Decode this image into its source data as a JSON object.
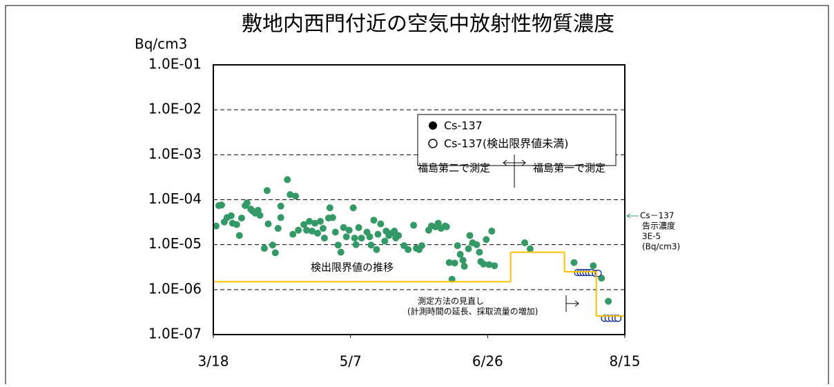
{
  "chart_data": {
    "type": "scatter",
    "title": "敷地内西門付近の空気中放射性物質濃度",
    "y_axis_label": "Bq/cm3",
    "log_y": true,
    "grid": true,
    "legend_position": "top",
    "xlim": [
      0,
      150
    ],
    "xticks": [
      {
        "value": 0,
        "label": "3/18"
      },
      {
        "value": 50,
        "label": "5/7"
      },
      {
        "value": 100,
        "label": "6/26"
      },
      {
        "value": 150,
        "label": "8/15"
      }
    ],
    "ylim": [
      1e-07,
      0.1
    ],
    "yticks": [
      {
        "value": 1e-07,
        "label": "1.0E-07"
      },
      {
        "value": 1e-06,
        "label": "1.0E-06"
      },
      {
        "value": 1e-05,
        "label": "1.0E-05"
      },
      {
        "value": 0.0001,
        "label": "1.0E-04"
      },
      {
        "value": 0.001,
        "label": "1.0E-03"
      },
      {
        "value": 0.01,
        "label": "1.0E-02"
      },
      {
        "value": 0.1,
        "label": "1.0E-01"
      }
    ],
    "series": [
      {
        "name": "Cs-137",
        "color": "#339966",
        "marker": "filled",
        "x": [
          1,
          2,
          3,
          4,
          5,
          6.5,
          7,
          8.5,
          9.5,
          10.3,
          11.6,
          12.3,
          13.6,
          14.3,
          15.3,
          16.3,
          17,
          18.6,
          19.6,
          20,
          21.6,
          22.6,
          23.6,
          24.6,
          24.6,
          27,
          28,
          29,
          30,
          31,
          33,
          34,
          35,
          36,
          37,
          38,
          39,
          40,
          40.5,
          42,
          42.5,
          43.5,
          44.5,
          45.5,
          46.5,
          47.5,
          48.5,
          49.5,
          51,
          51.5,
          52,
          53,
          54,
          56,
          57,
          57.5,
          58.5,
          59.5,
          60,
          61,
          62.5,
          63,
          64,
          65,
          66,
          66.5,
          67.5,
          69.5,
          71,
          73,
          74,
          75,
          76,
          78.5,
          79.5,
          81,
          82,
          83,
          84.5,
          85,
          86,
          87,
          88,
          89,
          90,
          91,
          91.5,
          93,
          93.5,
          94.5,
          96,
          97,
          97.5,
          98.5,
          99.5,
          100.5,
          101.5,
          102.5,
          113.5,
          115.5,
          131.5,
          138.5,
          141.5,
          144
        ],
        "values": [
          2.6e-05,
          7.4e-05,
          7.6e-05,
          3.2e-05,
          4e-05,
          4.4e-05,
          3e-05,
          2.8e-05,
          1.6e-05,
          3.9e-05,
          7.4e-05,
          8.5e-05,
          6.2e-05,
          5.6e-05,
          5e-05,
          5.8e-05,
          4.5e-05,
          8.3e-06,
          0.00016,
          2.9e-05,
          9.8e-06,
          6.6e-06,
          2.3e-05,
          7.2e-05,
          4e-05,
          0.00028,
          0.00013,
          1.7e-05,
          0.00012,
          2.1e-05,
          2.8e-05,
          2.1e-05,
          3.3e-05,
          2e-05,
          3e-05,
          1.8e-05,
          3.3e-05,
          2.3e-05,
          1.4e-05,
          3.9e-05,
          6.6e-05,
          4e-05,
          1.9e-05,
          9.8e-06,
          6.8e-06,
          2.4e-05,
          1.5e-05,
          2.1e-05,
          6.6e-05,
          1.4e-05,
          1e-05,
          2.4e-05,
          1.4e-05,
          1.9e-05,
          1.5e-05,
          9.8e-06,
          3.5e-05,
          7.8e-06,
          1.7e-05,
          2.9e-05,
          1.2e-05,
          2e-05,
          1.6e-05,
          1.8e-05,
          2e-05,
          1.4e-05,
          1.6e-05,
          9.5e-06,
          7.8e-06,
          2.7e-05,
          8.3e-06,
          7.8e-06,
          9.5e-06,
          2.1e-05,
          2.6e-05,
          2.5e-05,
          3e-05,
          2.3e-05,
          2.6e-05,
          2.5e-05,
          4e-06,
          1.7e-06,
          3.9e-06,
          9.5e-06,
          6.1e-06,
          4.5e-06,
          3.3e-06,
          8.1e-06,
          1.6e-05,
          1.1e-05,
          1e-05,
          6.8e-06,
          4.2e-06,
          3.7e-06,
          1.3e-05,
          3.6e-06,
          2e-05,
          3.4e-06,
          1.1e-05,
          8.1e-06,
          4e-06,
          3.4e-06,
          1.8e-06,
          5.5e-07
        ]
      },
      {
        "name": "Cs-137(検出限界値未満)",
        "color": "#1f3a93",
        "marker": "open",
        "x": [
          132.8,
          133.8,
          134.8,
          135.8,
          136.8,
          137.8,
          139.3,
          140.3,
          142.6,
          143.9,
          145.2,
          146.5,
          147.5
        ],
        "values": [
          2.4e-06,
          2.4e-06,
          2.4e-06,
          2.4e-06,
          2.4e-06,
          2.4e-06,
          2.3e-06,
          2.3e-06,
          2.3e-07,
          2.3e-07,
          2.3e-07,
          2.3e-07,
          2.3e-07
        ]
      },
      {
        "name": "検出限界値の推移",
        "color": "#ffc000",
        "marker": "step",
        "x": [
          0,
          108.4,
          128,
          139.6
        ],
        "values": [
          1.5e-06,
          6.8e-06,
          2.5e-06,
          2.6e-07
        ]
      }
    ],
    "annotations": {
      "site2": "福島第二で測定",
      "site1": "福島第一で測定",
      "method_1": "測定方法の見直し",
      "method_2": "(計測時間の延長、採取流量の増加)",
      "limit_1": "Cs－137",
      "limit_2": "告示濃度",
      "limit_3": "3E-5",
      "limit_4": "(Bq/cm3)"
    }
  }
}
